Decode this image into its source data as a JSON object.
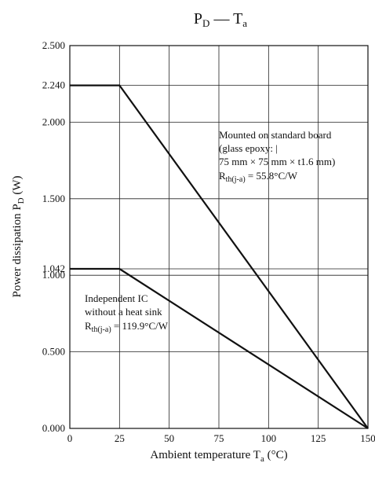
{
  "chart_data": {
    "type": "line",
    "title": {
      "main": "P",
      "main_sub": "D",
      "dash": " — ",
      "second": "T",
      "second_sub": "a"
    },
    "xlabel": {
      "text": "Ambient temperature  T",
      "sub": "a",
      "unit": " (°C)"
    },
    "ylabel": {
      "text": "Power dissipation   P",
      "sub": "D",
      "unit": " (W)"
    },
    "xlim": [
      0,
      150
    ],
    "ylim": [
      0,
      2.5
    ],
    "x_ticks": [
      0,
      25,
      50,
      75,
      100,
      125,
      150
    ],
    "x_tick_labels": [
      "0",
      "25",
      "50",
      "75",
      "100",
      "125",
      "150"
    ],
    "y_ticks": [
      0,
      0.5,
      1.0,
      1.042,
      1.5,
      2.0,
      2.24,
      2.5
    ],
    "y_tick_labels": [
      "0.000",
      "0.500",
      "1.000",
      "1.042",
      "1.500",
      "2.000",
      "2.240",
      "2.500"
    ],
    "grid": true,
    "series": [
      {
        "x": [
          0,
          25,
          150
        ],
        "y": [
          2.24,
          2.24,
          0
        ],
        "annotation": {
          "lines": [
            "Mounted on standard board",
            "(glass epoxy: |",
            " 75 mm × 75 mm × t1.6 mm)"
          ],
          "rth_prefix": "R",
          "rth_sub": "th(j-a)",
          "rth_value": " = 55.8°C/W"
        }
      },
      {
        "x": [
          0,
          25,
          150
        ],
        "y": [
          1.042,
          1.042,
          0
        ],
        "annotation": {
          "lines": [
            "Independent IC",
            "without a heat sink"
          ],
          "rth_prefix": "R",
          "rth_sub": "th(j-a)",
          "rth_value": " = 119.9°C/W"
        }
      }
    ]
  }
}
